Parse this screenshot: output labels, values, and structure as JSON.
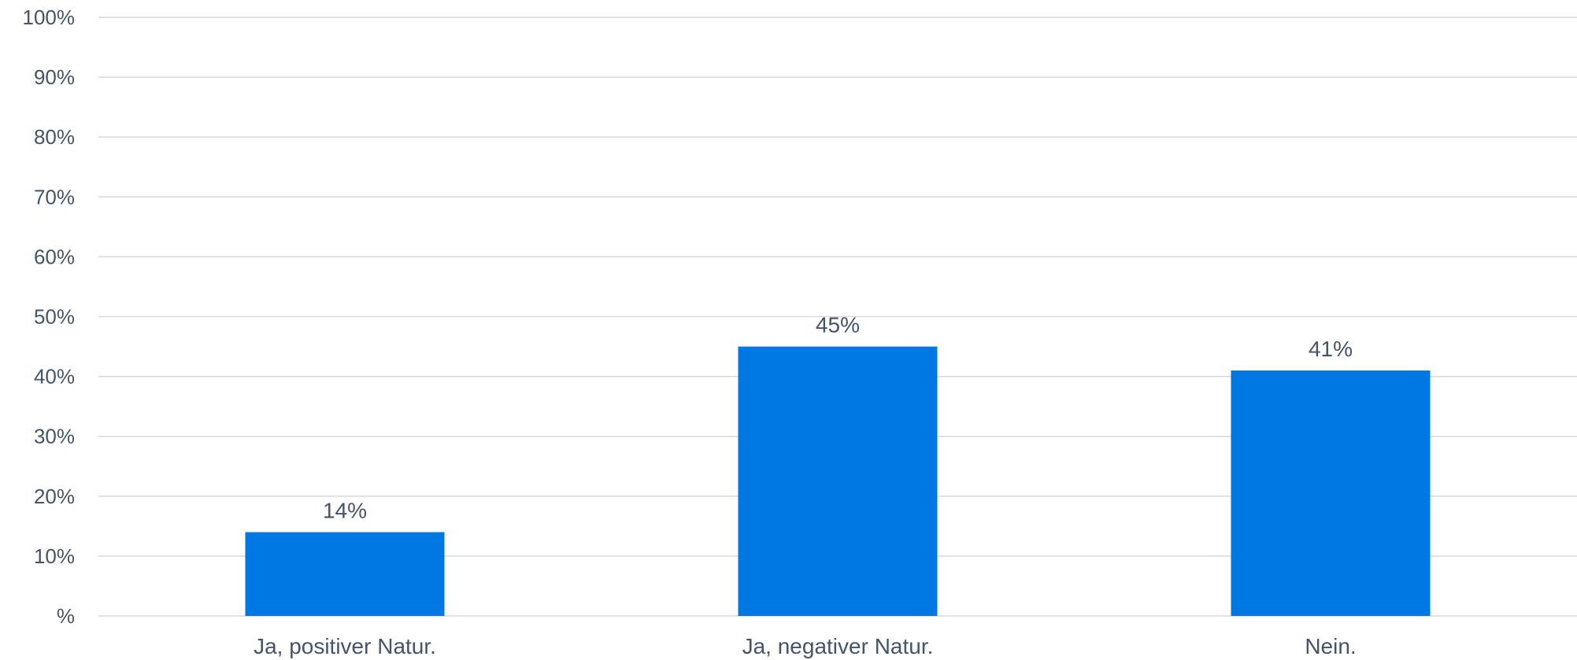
{
  "chart_data": {
    "type": "bar",
    "categories": [
      "Ja, positiver Natur.",
      "Ja, negativer Natur.",
      "Nein."
    ],
    "values": [
      14,
      45,
      41
    ],
    "data_labels": [
      "14%",
      "45%",
      "41%"
    ],
    "title": "",
    "xlabel": "",
    "ylabel": "",
    "ylim": [
      0,
      100
    ],
    "y_ticks": [
      0,
      10,
      20,
      30,
      40,
      50,
      60,
      70,
      80,
      90,
      100
    ],
    "y_tick_labels": [
      "%",
      "10%",
      "20%",
      "30%",
      "40%",
      "50%",
      "60%",
      "70%",
      "80%",
      "90%",
      "100%"
    ],
    "grid": true,
    "legend": "none",
    "bar_color": "#0078e3",
    "text_color": "#44546a",
    "grid_color": "#d9d9d9"
  }
}
